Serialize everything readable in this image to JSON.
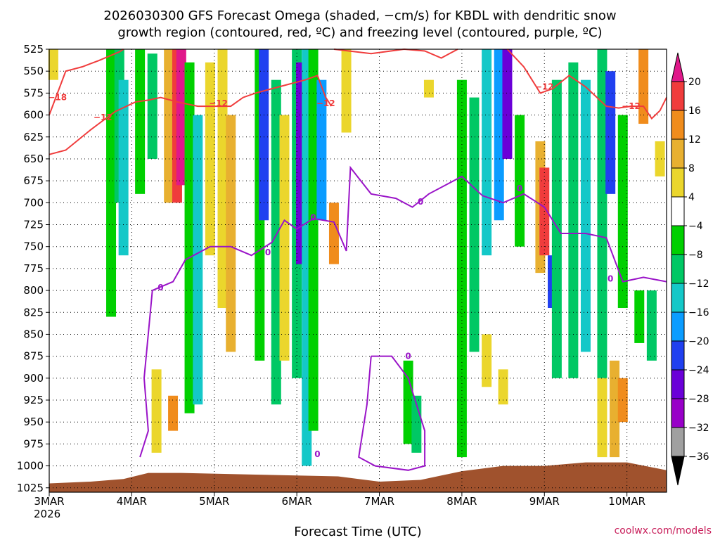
{
  "chart_data": {
    "type": "heatmap",
    "title_line1": "2026030300 GFS Forecast Omega (shaded, −cm/s) for KBDL with dendritic snow",
    "title_line2": "growth region (contoured, red, ºC) and freezing level (contoured, purple, ºC)",
    "xlabel": "Forecast Time (UTC)",
    "credit": "coolwx.com/models",
    "x_days": [
      3,
      4,
      5,
      6,
      7,
      8,
      9,
      10
    ],
    "x_tick_labels": [
      "3MAR",
      "4MAR",
      "5MAR",
      "6MAR",
      "7MAR",
      "8MAR",
      "9MAR",
      "10MAR"
    ],
    "x_year_label": "2026",
    "x_range_days": [
      3.0,
      10.48
    ],
    "y_ticks": [
      525,
      550,
      575,
      600,
      625,
      650,
      675,
      700,
      725,
      750,
      775,
      800,
      825,
      850,
      875,
      900,
      925,
      950,
      975,
      1000,
      1025
    ],
    "y_tick_labels": [
      "525",
      "550",
      "575",
      "600",
      "625",
      "650",
      "675",
      "700",
      "725",
      "750",
      "775",
      "800",
      "825",
      "850",
      "875",
      "900",
      "925",
      "950",
      "975",
      "1000",
      "1025"
    ],
    "y_range_hpa": [
      525,
      1030
    ],
    "colorbar": {
      "levels": [
        -36,
        -32,
        -28,
        -24,
        -20,
        -16,
        -12,
        -8,
        -4,
        4,
        8,
        12,
        16,
        20
      ],
      "labels": [
        "20",
        "16",
        "12",
        "8",
        "4",
        "−4",
        "−8",
        "−12",
        "−16",
        "−20",
        "−24",
        "−28",
        "−32",
        "−36"
      ],
      "colors": [
        "#000000",
        "#a0a0a0",
        "#9800c8",
        "#6a00d8",
        "#2040f0",
        "#0a9cff",
        "#14c8c8",
        "#00c864",
        "#00d000",
        "#ffffff",
        "#ebd62c",
        "#e8b030",
        "#f08c1c",
        "#f03c3c",
        "#e0188a"
      ]
    },
    "omega_cells": [
      {
        "t": 3.05,
        "p0": 525,
        "p1": 560,
        "v": 5
      },
      {
        "t": 3.75,
        "p0": 525,
        "p1": 830,
        "v": -6
      },
      {
        "t": 3.85,
        "p0": 525,
        "p1": 700,
        "v": -9
      },
      {
        "t": 3.9,
        "p0": 560,
        "p1": 760,
        "v": -13
      },
      {
        "t": 4.1,
        "p0": 525,
        "p1": 690,
        "v": -7
      },
      {
        "t": 4.25,
        "p0": 530,
        "p1": 650,
        "v": -9
      },
      {
        "t": 4.45,
        "p0": 525,
        "p1": 700,
        "v": 9
      },
      {
        "t": 4.55,
        "p0": 525,
        "p1": 700,
        "v": 17
      },
      {
        "t": 4.6,
        "p0": 525,
        "p1": 680,
        "v": 22
      },
      {
        "t": 4.7,
        "p0": 540,
        "p1": 940,
        "v": -7
      },
      {
        "t": 4.8,
        "p0": 600,
        "p1": 930,
        "v": -14
      },
      {
        "t": 4.3,
        "p0": 890,
        "p1": 985,
        "v": 6
      },
      {
        "t": 4.5,
        "p0": 920,
        "p1": 960,
        "v": 13
      },
      {
        "t": 4.95,
        "p0": 540,
        "p1": 760,
        "v": 5
      },
      {
        "t": 5.1,
        "p0": 525,
        "p1": 820,
        "v": 6
      },
      {
        "t": 5.2,
        "p0": 600,
        "p1": 870,
        "v": 10
      },
      {
        "t": 5.55,
        "p0": 525,
        "p1": 880,
        "v": -7
      },
      {
        "t": 5.6,
        "p0": 525,
        "p1": 720,
        "v": -21
      },
      {
        "t": 5.75,
        "p0": 560,
        "p1": 930,
        "v": -9
      },
      {
        "t": 5.85,
        "p0": 600,
        "p1": 880,
        "v": 6
      },
      {
        "t": 6.0,
        "p0": 525,
        "p1": 900,
        "v": -11
      },
      {
        "t": 6.05,
        "p0": 540,
        "p1": 770,
        "v": -25
      },
      {
        "t": 6.12,
        "p0": 525,
        "p1": 1000,
        "v": -15
      },
      {
        "t": 6.2,
        "p0": 525,
        "p1": 960,
        "v": -7
      },
      {
        "t": 6.3,
        "p0": 560,
        "p1": 720,
        "v": -18
      },
      {
        "t": 6.45,
        "p0": 700,
        "p1": 770,
        "v": 14
      },
      {
        "t": 6.6,
        "p0": 525,
        "p1": 620,
        "v": 6
      },
      {
        "t": 7.35,
        "p0": 880,
        "p1": 975,
        "v": -8
      },
      {
        "t": 7.45,
        "p0": 920,
        "p1": 985,
        "v": -10
      },
      {
        "t": 7.6,
        "p0": 560,
        "p1": 580,
        "v": 5
      },
      {
        "t": 8.0,
        "p0": 560,
        "p1": 990,
        "v": -8
      },
      {
        "t": 8.15,
        "p0": 580,
        "p1": 870,
        "v": -12
      },
      {
        "t": 8.3,
        "p0": 525,
        "p1": 760,
        "v": -14
      },
      {
        "t": 8.45,
        "p0": 525,
        "p1": 720,
        "v": -19
      },
      {
        "t": 8.55,
        "p0": 525,
        "p1": 650,
        "v": -28
      },
      {
        "t": 8.7,
        "p0": 600,
        "p1": 750,
        "v": -8
      },
      {
        "t": 8.3,
        "p0": 850,
        "p1": 910,
        "v": 6
      },
      {
        "t": 8.5,
        "p0": 890,
        "p1": 930,
        "v": 6
      },
      {
        "t": 8.95,
        "p0": 630,
        "p1": 780,
        "v": 10
      },
      {
        "t": 9.0,
        "p0": 660,
        "p1": 760,
        "v": 18
      },
      {
        "t": 9.1,
        "p0": 760,
        "p1": 820,
        "v": -22
      },
      {
        "t": 9.15,
        "p0": 560,
        "p1": 900,
        "v": -11
      },
      {
        "t": 9.35,
        "p0": 540,
        "p1": 900,
        "v": -9
      },
      {
        "t": 9.5,
        "p0": 560,
        "p1": 870,
        "v": -14
      },
      {
        "t": 9.7,
        "p0": 525,
        "p1": 900,
        "v": -10
      },
      {
        "t": 9.8,
        "p0": 550,
        "p1": 690,
        "v": -22
      },
      {
        "t": 9.95,
        "p0": 600,
        "p1": 820,
        "v": -8
      },
      {
        "t": 10.15,
        "p0": 800,
        "p1": 860,
        "v": -7
      },
      {
        "t": 10.3,
        "p0": 800,
        "p1": 880,
        "v": -9
      },
      {
        "t": 10.2,
        "p0": 525,
        "p1": 610,
        "v": 14
      },
      {
        "t": 10.4,
        "p0": 630,
        "p1": 670,
        "v": 6
      },
      {
        "t": 9.7,
        "p0": 900,
        "p1": 990,
        "v": 6
      },
      {
        "t": 9.85,
        "p0": 880,
        "p1": 990,
        "v": 9
      },
      {
        "t": 9.95,
        "p0": 900,
        "p1": 950,
        "v": 14
      }
    ],
    "dgz_contour_12": [
      [
        3.0,
        645
      ],
      [
        3.2,
        640
      ],
      [
        3.5,
        617
      ],
      [
        3.6,
        610
      ],
      [
        3.8,
        596
      ],
      [
        4.05,
        585
      ],
      [
        4.2,
        583
      ],
      [
        4.35,
        580
      ],
      [
        4.55,
        585
      ],
      [
        4.8,
        590
      ],
      [
        5.0,
        590
      ],
      [
        5.2,
        590
      ],
      [
        5.35,
        580
      ],
      [
        5.5,
        575
      ],
      [
        5.7,
        570
      ],
      [
        5.9,
        565
      ],
      [
        6.1,
        560
      ],
      [
        6.25,
        555
      ],
      [
        6.35,
        580
      ],
      [
        6.42,
        590
      ]
    ],
    "dgz_contour_18": [
      [
        3.0,
        600
      ],
      [
        3.2,
        550
      ],
      [
        3.4,
        545
      ],
      [
        3.6,
        538
      ],
      [
        3.85,
        528
      ],
      [
        3.9,
        525
      ]
    ],
    "dgz_contour_12_right": [
      [
        8.55,
        525
      ],
      [
        8.75,
        545
      ],
      [
        8.85,
        560
      ],
      [
        8.95,
        575
      ],
      [
        9.1,
        570
      ],
      [
        9.3,
        555
      ],
      [
        9.5,
        568
      ],
      [
        9.75,
        590
      ],
      [
        9.9,
        592
      ],
      [
        10.05,
        590
      ],
      [
        10.2,
        590
      ],
      [
        10.3,
        604
      ],
      [
        10.4,
        595
      ],
      [
        10.48,
        580
      ]
    ],
    "dgz_top_right": [
      [
        6.45,
        525
      ],
      [
        6.9,
        530
      ],
      [
        7.3,
        525
      ],
      [
        7.55,
        527
      ],
      [
        7.75,
        535
      ],
      [
        7.95,
        525
      ]
    ],
    "dgz_labels": [
      {
        "text": "−18",
        "t": 3.1,
        "p": 583
      },
      {
        "text": "−12",
        "t": 3.65,
        "p": 606
      },
      {
        "text": "−12",
        "t": 5.05,
        "p": 590
      },
      {
        "text": "−12",
        "t": 6.35,
        "p": 590
      },
      {
        "text": "−12",
        "t": 9.0,
        "p": 571
      },
      {
        "text": "−12",
        "t": 10.05,
        "p": 593
      }
    ],
    "freezing_contour_upper": [
      [
        4.1,
        990
      ],
      [
        4.2,
        960
      ],
      [
        4.15,
        900
      ],
      [
        4.25,
        800
      ],
      [
        4.5,
        790
      ],
      [
        4.65,
        765
      ],
      [
        4.95,
        750
      ],
      [
        5.2,
        750
      ],
      [
        5.45,
        760
      ],
      [
        5.7,
        745
      ],
      [
        5.85,
        720
      ],
      [
        6.0,
        730
      ],
      [
        6.2,
        718
      ],
      [
        6.45,
        722
      ],
      [
        6.6,
        755
      ],
      [
        6.65,
        660
      ],
      [
        6.9,
        690
      ],
      [
        7.2,
        695
      ],
      [
        7.4,
        705
      ],
      [
        7.6,
        690
      ],
      [
        7.8,
        680
      ],
      [
        8.0,
        670
      ],
      [
        8.25,
        692
      ],
      [
        8.5,
        700
      ],
      [
        8.75,
        690
      ],
      [
        9.0,
        705
      ],
      [
        9.2,
        735
      ],
      [
        9.5,
        735
      ],
      [
        9.75,
        740
      ],
      [
        9.95,
        790
      ],
      [
        10.2,
        785
      ],
      [
        10.48,
        790
      ]
    ],
    "freezing_contour_lower": [
      [
        6.9,
        875
      ],
      [
        7.15,
        875
      ],
      [
        7.35,
        900
      ],
      [
        7.55,
        960
      ],
      [
        7.55,
        1000
      ],
      [
        7.35,
        1005
      ],
      [
        6.95,
        1000
      ],
      [
        6.75,
        990
      ],
      [
        6.85,
        930
      ],
      [
        6.9,
        875
      ]
    ],
    "freezing_labels": [
      {
        "text": "0",
        "t": 4.35,
        "p": 800
      },
      {
        "text": "0",
        "t": 5.65,
        "p": 760
      },
      {
        "text": "0",
        "t": 6.2,
        "p": 720
      },
      {
        "text": "0",
        "t": 7.5,
        "p": 702
      },
      {
        "text": "0",
        "t": 8.7,
        "p": 687
      },
      {
        "text": "0",
        "t": 9.8,
        "p": 790
      },
      {
        "text": "0",
        "t": 6.25,
        "p": 990
      },
      {
        "text": "0",
        "t": 7.35,
        "p": 878
      }
    ],
    "terrain": [
      [
        3.0,
        1020
      ],
      [
        3.5,
        1018
      ],
      [
        3.9,
        1015
      ],
      [
        4.2,
        1008
      ],
      [
        4.6,
        1008
      ],
      [
        5.5,
        1010
      ],
      [
        6.5,
        1012
      ],
      [
        7.0,
        1018
      ],
      [
        7.5,
        1016
      ],
      [
        8.0,
        1006
      ],
      [
        8.5,
        1000
      ],
      [
        9.0,
        1000
      ],
      [
        9.5,
        996
      ],
      [
        10.0,
        996
      ],
      [
        10.48,
        1005
      ]
    ]
  }
}
